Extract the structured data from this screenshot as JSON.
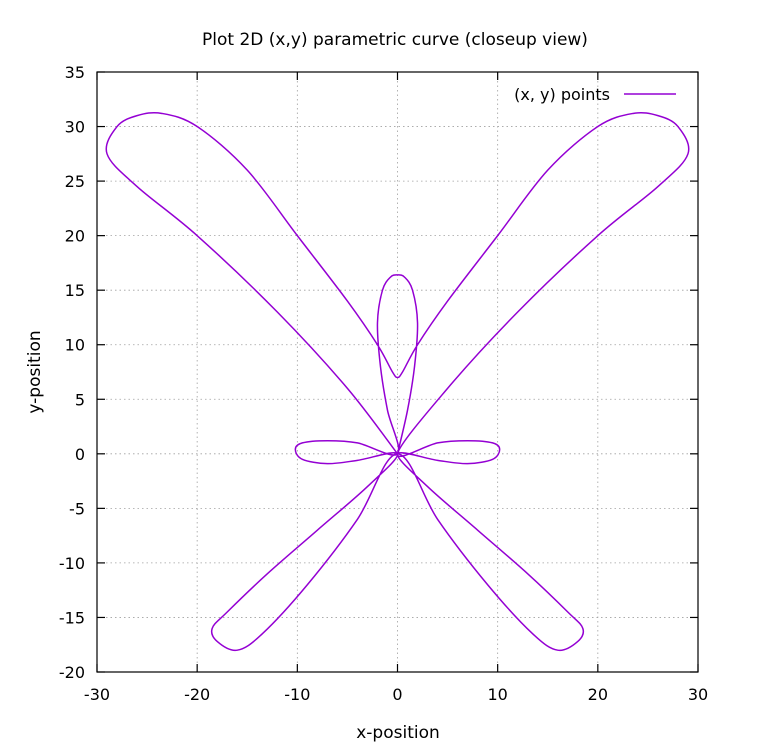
{
  "chart_data": {
    "type": "line",
    "title": "Plot 2D (x,y) parametric curve (closeup view)",
    "xlabel": "x-position",
    "ylabel": "y-position",
    "xlim": [
      -30,
      30
    ],
    "ylim": [
      -20,
      35
    ],
    "xticks": [
      -30,
      -20,
      -10,
      0,
      10,
      20,
      30
    ],
    "yticks": [
      -20,
      -15,
      -10,
      -5,
      0,
      5,
      10,
      15,
      20,
      25,
      30,
      35
    ],
    "xtick_labels": [
      "-30",
      "-20",
      "-10",
      "0",
      "10",
      "20",
      "30"
    ],
    "ytick_labels": [
      "-20",
      "-15",
      "-10",
      "-5",
      "0",
      "5",
      "10",
      "15",
      "20",
      "25",
      "30",
      "35"
    ],
    "grid": true,
    "legend_position": "top-right",
    "series": [
      {
        "name": "(x, y) points",
        "color": "#9400d3",
        "points": [
          [
            0,
            0
          ],
          [
            -5,
            6
          ],
          [
            -12,
            13
          ],
          [
            -20,
            20
          ],
          [
            -26,
            24.5
          ],
          [
            -29,
            27.5
          ],
          [
            -28,
            30
          ],
          [
            -26,
            31
          ],
          [
            -23.5,
            31.2
          ],
          [
            -20,
            30
          ],
          [
            -15,
            26
          ],
          [
            -10,
            20
          ],
          [
            -5,
            14
          ],
          [
            -2,
            10
          ],
          [
            -0.5,
            7.5
          ],
          [
            0,
            7
          ],
          [
            0.5,
            7.5
          ],
          [
            2,
            10
          ],
          [
            5,
            14
          ],
          [
            10,
            20
          ],
          [
            15,
            26
          ],
          [
            20,
            30
          ],
          [
            23.5,
            31.2
          ],
          [
            26,
            31
          ],
          [
            28,
            30
          ],
          [
            29,
            27.5
          ],
          [
            26,
            24.5
          ],
          [
            20,
            20
          ],
          [
            12,
            13
          ],
          [
            5,
            6
          ],
          [
            0,
            0
          ],
          [
            4,
            1
          ],
          [
            7,
            1.2
          ],
          [
            9.5,
            1
          ],
          [
            10.2,
            0.4
          ],
          [
            9.5,
            -0.5
          ],
          [
            7,
            -0.9
          ],
          [
            4,
            -0.6
          ],
          [
            0,
            0
          ],
          [
            3,
            -3
          ],
          [
            8,
            -7
          ],
          [
            13,
            -11
          ],
          [
            17,
            -14.5
          ],
          [
            18.5,
            -16
          ],
          [
            18,
            -17.2
          ],
          [
            16,
            -18
          ],
          [
            13.5,
            -16.5
          ],
          [
            9,
            -12
          ],
          [
            4,
            -6
          ],
          [
            0,
            0
          ],
          [
            -4,
            -6
          ],
          [
            -9,
            -12
          ],
          [
            -13.5,
            -16.5
          ],
          [
            -16,
            -18
          ],
          [
            -18,
            -17.2
          ],
          [
            -18.5,
            -16
          ],
          [
            -17,
            -14.5
          ],
          [
            -13,
            -11
          ],
          [
            -8,
            -7
          ],
          [
            -3,
            -3
          ],
          [
            0,
            0
          ],
          [
            -4,
            -0.6
          ],
          [
            -7,
            -0.9
          ],
          [
            -9.5,
            -0.5
          ],
          [
            -10.2,
            0.4
          ],
          [
            -9.5,
            1
          ],
          [
            -7,
            1.2
          ],
          [
            -4,
            1
          ],
          [
            0,
            0
          ],
          [
            -1,
            4
          ],
          [
            -1.7,
            8
          ],
          [
            -2,
            12
          ],
          [
            -1.5,
            15
          ],
          [
            -0.7,
            16.2
          ],
          [
            0,
            16.4
          ],
          [
            0.7,
            16.2
          ],
          [
            1.5,
            15
          ],
          [
            2,
            12
          ],
          [
            1.7,
            8
          ],
          [
            1,
            4
          ],
          [
            0,
            0
          ]
        ]
      }
    ]
  }
}
